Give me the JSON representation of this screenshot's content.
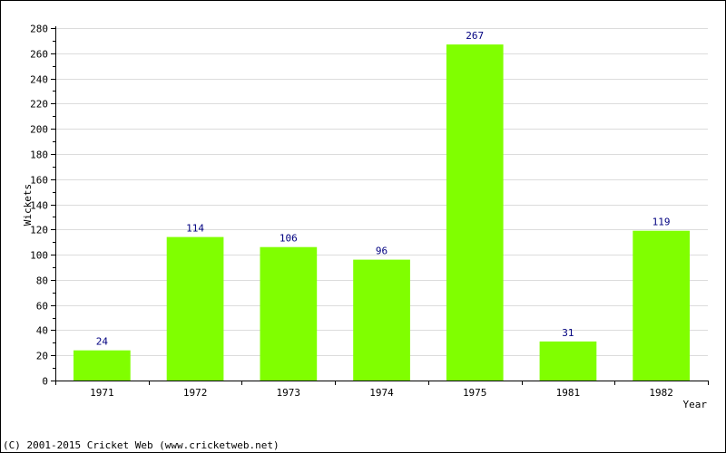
{
  "chart_data": {
    "type": "bar",
    "categories": [
      "1971",
      "1972",
      "1973",
      "1974",
      "1975",
      "1981",
      "1982"
    ],
    "values": [
      24,
      114,
      106,
      96,
      267,
      31,
      119
    ],
    "data_labels": [
      "24",
      "114",
      "106",
      "96",
      "267",
      "31",
      "119"
    ],
    "title": "",
    "xlabel": "Year",
    "ylabel": "Wickets",
    "ylim": [
      0,
      280
    ],
    "yticks": [
      0,
      20,
      40,
      60,
      80,
      100,
      120,
      140,
      160,
      180,
      200,
      220,
      240,
      260,
      280
    ],
    "ytick_labels": [
      "0",
      "20",
      "40",
      "60",
      "80",
      "100",
      "120",
      "140",
      "160",
      "180",
      "200",
      "220",
      "240",
      "260",
      "280"
    ],
    "grid": true,
    "bar_color": "#80ff00",
    "label_color": "#000080"
  },
  "footer": {
    "copyright": "(C) 2001-2015 Cricket Web (www.cricketweb.net)"
  }
}
